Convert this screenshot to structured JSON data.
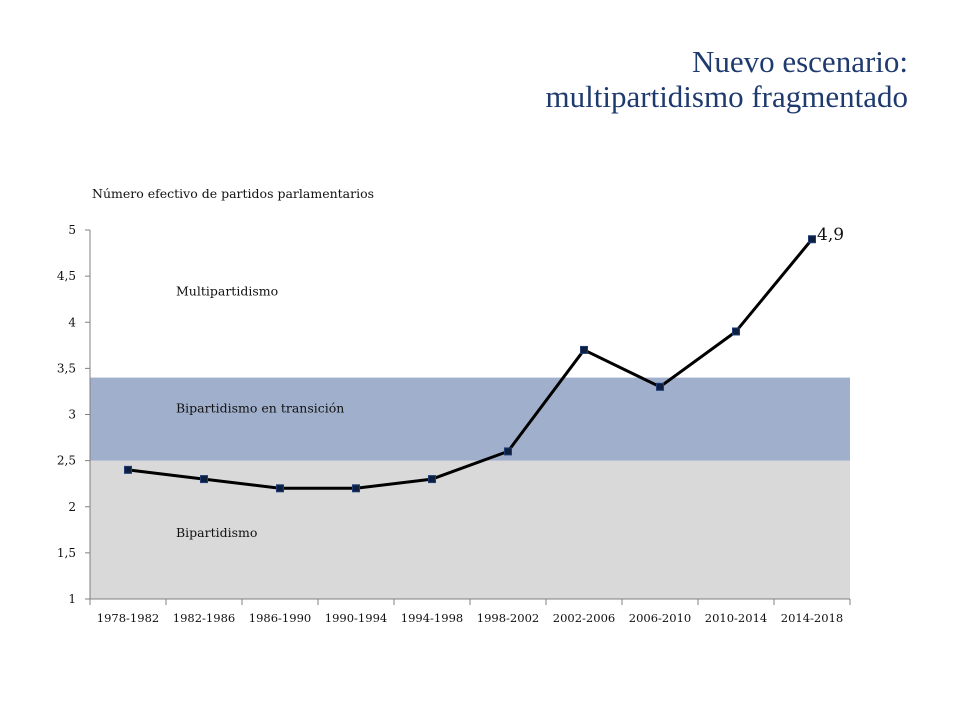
{
  "header": {
    "title_line1": "Nuevo escenario:",
    "title_line2": "multipartidismo fragmentado"
  },
  "chart_data": {
    "type": "line",
    "title": "Número efectivo de partidos parlamentarios",
    "xlabel": "",
    "ylabel": "",
    "categories": [
      "1978-1982",
      "1982-1986",
      "1986-1990",
      "1990-1994",
      "1994-1998",
      "1998-2002",
      "2002-2006",
      "2006-2010",
      "2010-2014",
      "2014-2018"
    ],
    "series": [
      {
        "values": [
          2.4,
          2.3,
          2.2,
          2.2,
          2.3,
          2.6,
          3.7,
          3.3,
          3.9,
          4.9
        ]
      }
    ],
    "ylim": [
      1,
      5
    ],
    "yticks": [
      1,
      1.5,
      2,
      2.5,
      3,
      3.5,
      4,
      4.5,
      5
    ],
    "ytick_labels": [
      "1",
      "1,5",
      "2",
      "2,5",
      "3",
      "3,5",
      "4",
      "4,5",
      "5"
    ],
    "bands": [
      {
        "label": "Bipartidismo",
        "from": 1,
        "to": 2.5,
        "color": "#d9d9d9"
      },
      {
        "label": "Bipartidismo en transición",
        "from": 2.5,
        "to": 3.4,
        "color": "#a0afcb"
      },
      {
        "label": "Multipartidismo",
        "from": 3.4,
        "to": 5,
        "color": "#ffffff"
      }
    ],
    "annotations": [
      {
        "text": "4,9",
        "category": "2014-2018"
      }
    ],
    "line_color": "#000000",
    "marker_color": "#0d1f3c",
    "grid": false,
    "legend": "none"
  }
}
